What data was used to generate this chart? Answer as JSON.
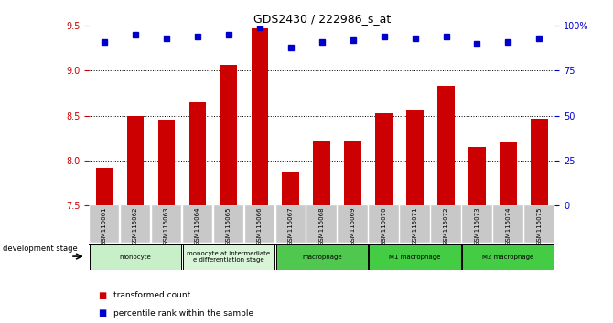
{
  "title": "GDS2430 / 222986_s_at",
  "samples": [
    "GSM115061",
    "GSM115062",
    "GSM115063",
    "GSM115064",
    "GSM115065",
    "GSM115066",
    "GSM115067",
    "GSM115068",
    "GSM115069",
    "GSM115070",
    "GSM115071",
    "GSM115072",
    "GSM115073",
    "GSM115074",
    "GSM115075"
  ],
  "bar_values": [
    7.92,
    8.5,
    8.45,
    8.65,
    9.07,
    9.47,
    7.87,
    8.22,
    8.22,
    8.53,
    8.56,
    8.83,
    8.15,
    8.2,
    8.47
  ],
  "dot_values": [
    91,
    95,
    93,
    94,
    95,
    99,
    88,
    91,
    92,
    94,
    93,
    94,
    90,
    91,
    93
  ],
  "bar_color": "#cc0000",
  "dot_color": "#0000cc",
  "ylim_left": [
    7.5,
    9.5
  ],
  "ylim_right": [
    0,
    100
  ],
  "yticks_left": [
    7.5,
    8.0,
    8.5,
    9.0,
    9.5
  ],
  "yticks_right": [
    0,
    25,
    50,
    75,
    100
  ],
  "grid_ticks": [
    8.0,
    8.5,
    9.0
  ],
  "bar_bottom": 7.5,
  "right_axis_color": "#0000cc",
  "left_axis_color": "#cc0000",
  "tick_label_bg": "#c8c8c8",
  "groups": [
    {
      "label": "monocyte",
      "start": 0,
      "end": 2,
      "color": "#c8f0c8"
    },
    {
      "label": "monocyte at intermediate\ne differentiation stage",
      "start": 3,
      "end": 5,
      "color": "#d8f5d8"
    },
    {
      "label": "macrophage",
      "start": 6,
      "end": 8,
      "color": "#50c850"
    },
    {
      "label": "M1 macrophage",
      "start": 9,
      "end": 11,
      "color": "#44cc44"
    },
    {
      "label": "M2 macrophage",
      "start": 12,
      "end": 14,
      "color": "#44cc44"
    }
  ],
  "development_stage_label": "development stage",
  "legend_items": [
    {
      "color": "#cc0000",
      "label": "transformed count"
    },
    {
      "color": "#0000cc",
      "label": "percentile rank within the sample"
    }
  ]
}
